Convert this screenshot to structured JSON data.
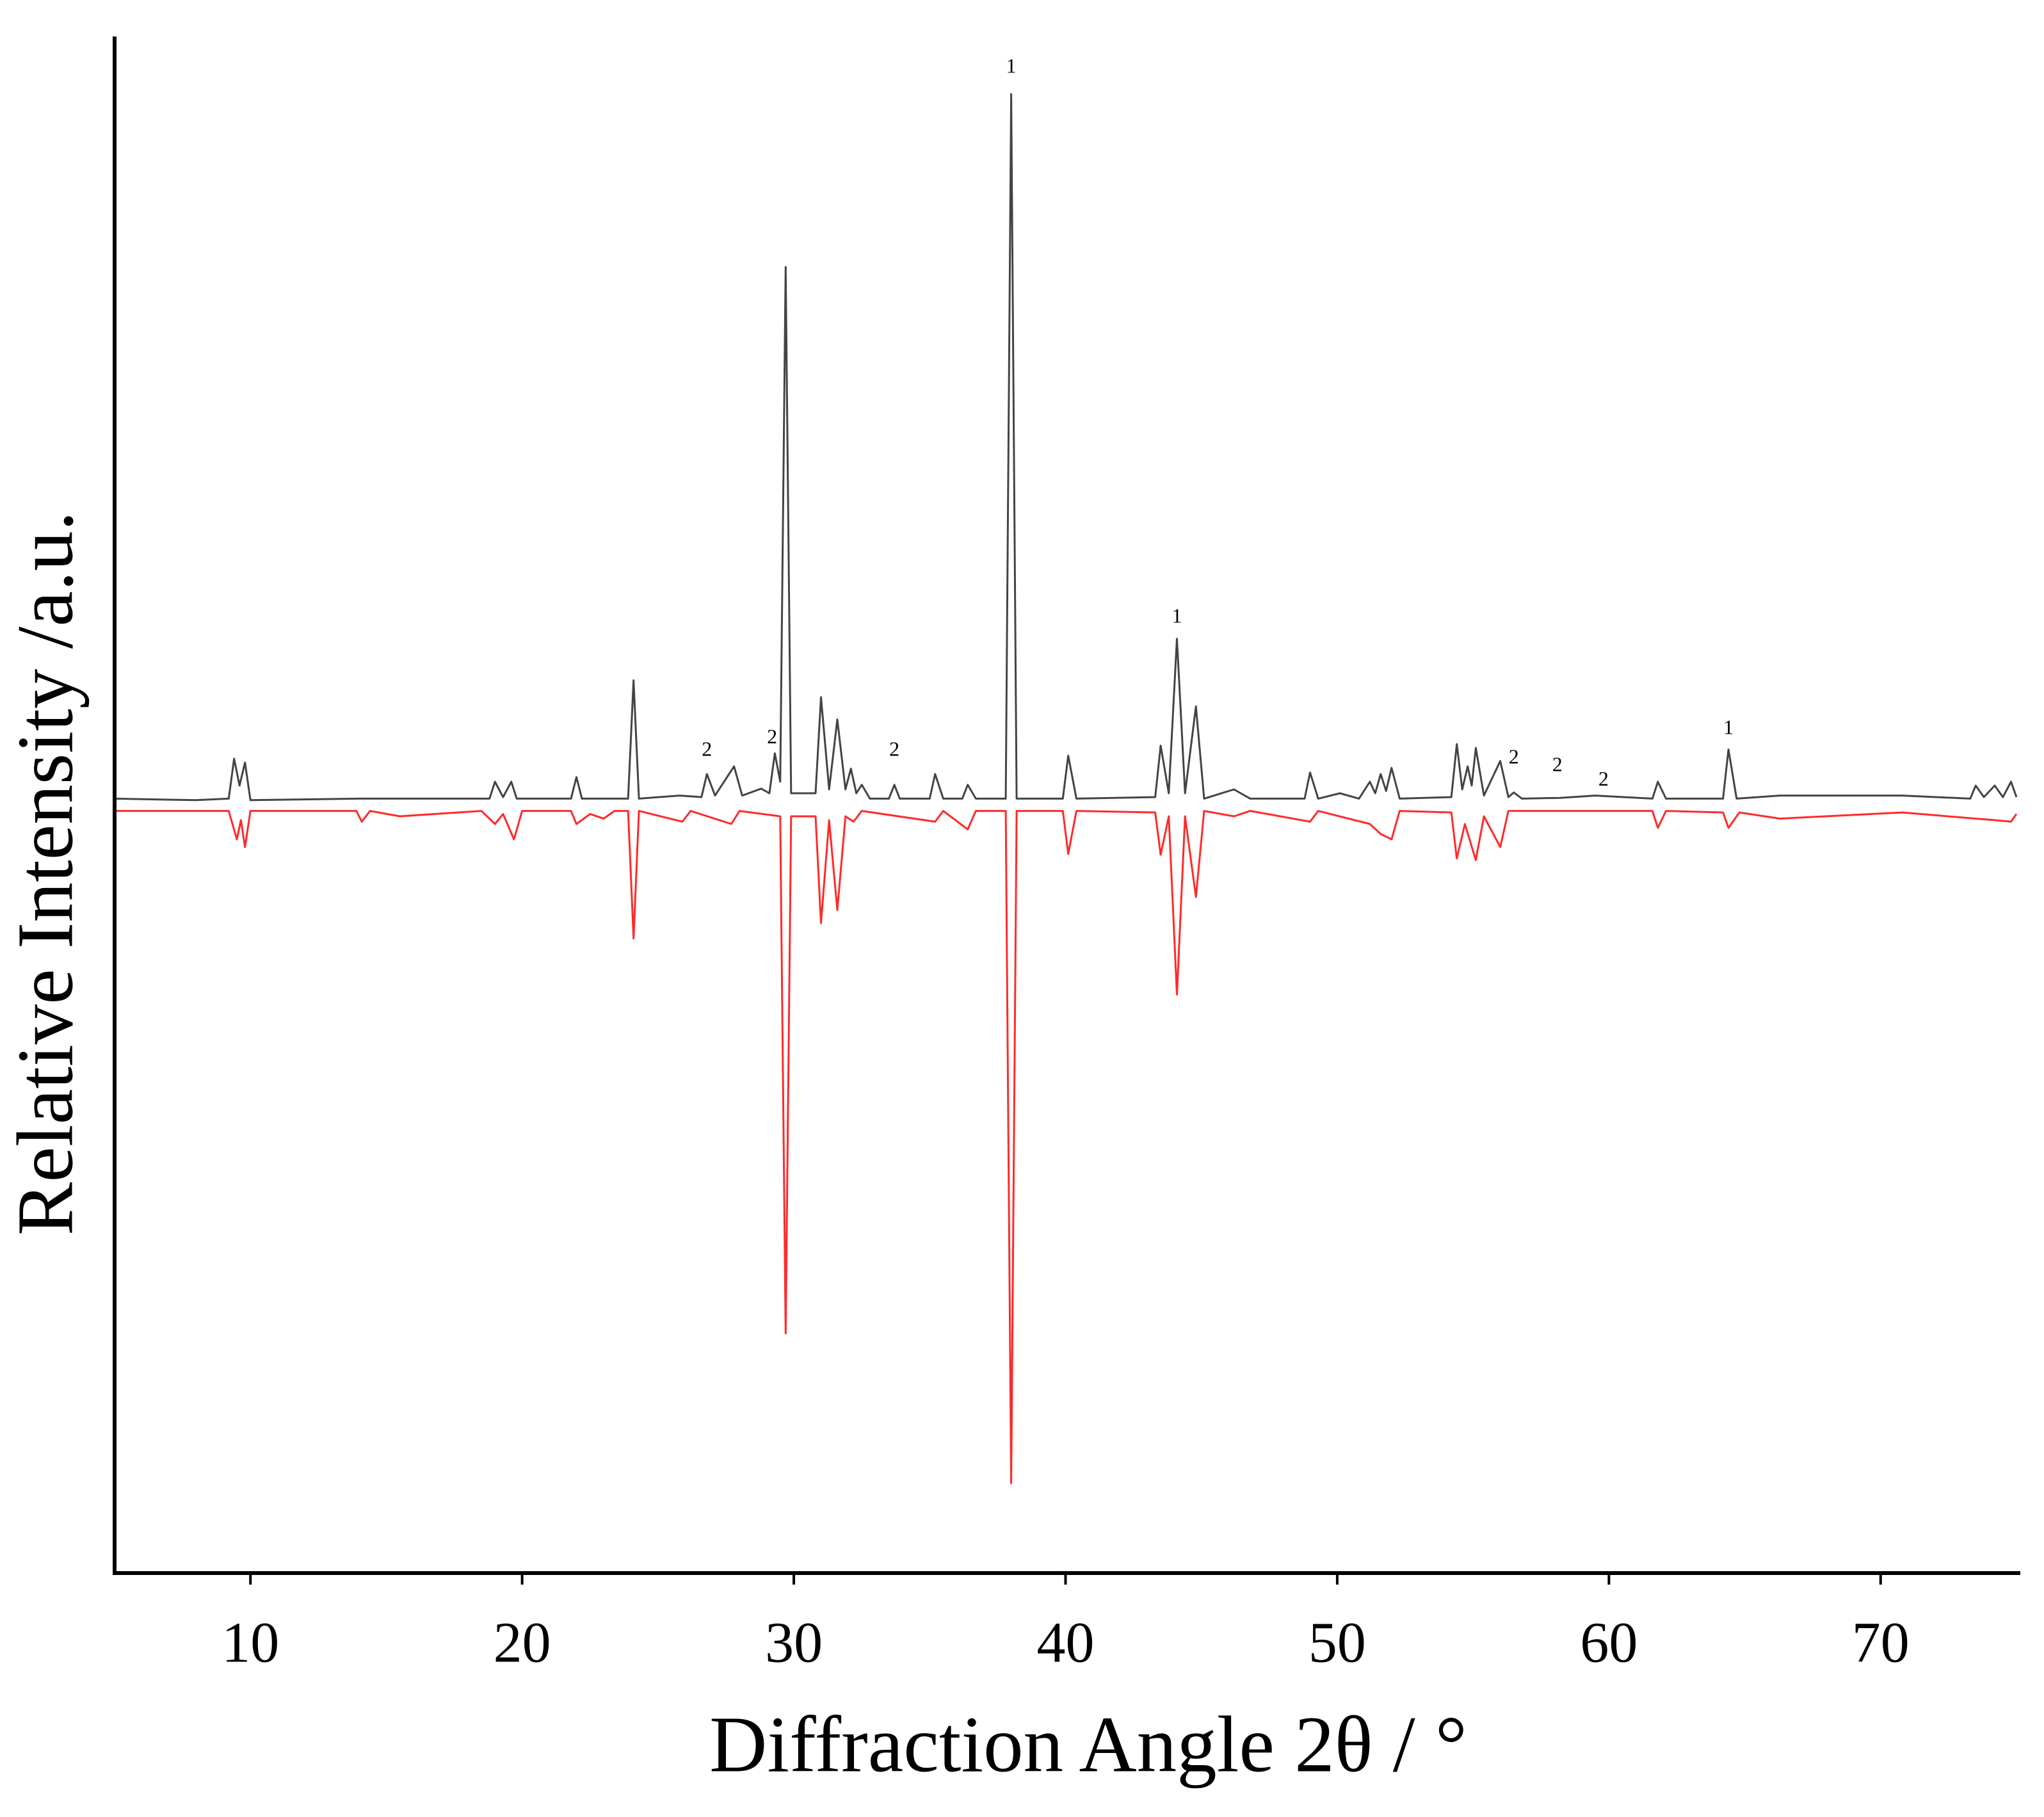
{
  "chart_data": {
    "type": "line",
    "x_label": "Diffraction Angle 2θ / °",
    "y_label": "Relative Intensity /a.u.",
    "xlim": [
      5,
      75
    ],
    "ylim": [
      -100,
      100
    ],
    "xticks": [
      10,
      20,
      30,
      40,
      50,
      60,
      70
    ],
    "series": [
      {
        "color": "#444444",
        "x": [
          5,
          8,
          9.2,
          9.4,
          9.6,
          9.8,
          10.0,
          14,
          18.8,
          19.0,
          19.3,
          19.6,
          19.8,
          21.8,
          22.0,
          22.2,
          23.9,
          24.1,
          24.3,
          25.8,
          26.6,
          26.8,
          27.1,
          27.8,
          28.1,
          28.8,
          29.1,
          29.3,
          29.5,
          29.7,
          29.9,
          30.8,
          31.0,
          31.3,
          31.6,
          31.9,
          32.1,
          32.3,
          32.5,
          32.8,
          33.5,
          33.7,
          33.9,
          35.0,
          35.2,
          35.5,
          36.2,
          36.4,
          36.7,
          37.8,
          38.0,
          38.2,
          39.9,
          40.1,
          40.4,
          43.3,
          43.5,
          43.8,
          44.1,
          44.4,
          44.8,
          45.1,
          46.2,
          46.8,
          48.8,
          49.0,
          49.3,
          50.1,
          50.8,
          51.2,
          51.4,
          51.6,
          51.8,
          52.0,
          52.3,
          54.2,
          54.4,
          54.6,
          54.8,
          54.95,
          55.1,
          55.4,
          56.0,
          56.3,
          56.5,
          56.8,
          58.2,
          59.5,
          61.6,
          61.8,
          62.1,
          64.2,
          64.4,
          64.7,
          66.3,
          70.8,
          73.3,
          73.5,
          73.8,
          74.2,
          74.5,
          74.8,
          75
        ],
        "values": [
          0.8,
          0.6,
          0.8,
          6.0,
          2.5,
          5.5,
          0.6,
          0.8,
          0.8,
          3.0,
          1.0,
          3.0,
          0.8,
          0.8,
          3.6,
          0.8,
          0.8,
          16.2,
          0.8,
          1.2,
          1.0,
          4.0,
          1.2,
          5.0,
          1.2,
          2.1,
          1.5,
          6.7,
          3.0,
          70.0,
          1.5,
          1.5,
          14.0,
          2.0,
          11.1,
          2.0,
          4.7,
          1.5,
          2.6,
          0.8,
          0.8,
          2.6,
          0.8,
          0.8,
          4.0,
          0.8,
          0.8,
          2.6,
          0.8,
          0.8,
          92.5,
          0.8,
          0.8,
          6.4,
          0.8,
          1.0,
          7.7,
          1.5,
          21.6,
          1.5,
          12.8,
          0.8,
          2.0,
          0.8,
          0.8,
          4.2,
          0.8,
          1.5,
          0.8,
          3.0,
          1.5,
          4.0,
          1.8,
          4.8,
          0.8,
          1.0,
          7.9,
          2.0,
          5.0,
          2.5,
          7.4,
          1.2,
          5.7,
          1.0,
          1.6,
          0.8,
          0.9,
          1.2,
          0.8,
          3.0,
          0.8,
          0.8,
          7.2,
          0.8,
          1.2,
          1.2,
          0.8,
          2.5,
          1.0,
          2.5,
          1.0,
          3.0,
          1.0
        ]
      },
      {
        "color": "#ff2a2a",
        "x": [
          5,
          9.2,
          9.5,
          9.65,
          9.8,
          10.0,
          13.9,
          14.1,
          14.4,
          15.5,
          18.5,
          19.0,
          19.3,
          19.7,
          20.0,
          21.8,
          22.0,
          22.5,
          23.0,
          23.4,
          23.9,
          24.1,
          24.3,
          25.9,
          26.2,
          27.7,
          28.0,
          29.5,
          29.7,
          29.9,
          30.8,
          31.0,
          31.3,
          31.6,
          31.9,
          32.2,
          32.5,
          35.2,
          35.5,
          36.4,
          36.7,
          37.8,
          38.0,
          38.2,
          39.9,
          40.1,
          40.4,
          43.3,
          43.5,
          43.8,
          44.1,
          44.4,
          44.8,
          45.1,
          46.2,
          46.8,
          49.0,
          49.3,
          51.2,
          51.6,
          52.0,
          52.3,
          54.2,
          54.4,
          54.7,
          55.1,
          55.4,
          56.0,
          56.3,
          61.6,
          61.8,
          62.1,
          64.2,
          64.4,
          64.8,
          66.3,
          70.8,
          73.5,
          74.2,
          74.8,
          75
        ],
        "values": [
          -0.8,
          -0.8,
          -4.5,
          -2.0,
          -5.5,
          -0.8,
          -0.8,
          -2.2,
          -0.8,
          -1.5,
          -0.8,
          -2.5,
          -1.2,
          -4.5,
          -0.8,
          -0.8,
          -2.5,
          -1.2,
          -1.8,
          -0.8,
          -0.8,
          -17.4,
          -0.8,
          -2.2,
          -0.8,
          -2.5,
          -0.8,
          -1.5,
          -68.8,
          -1.5,
          -1.5,
          -15.4,
          -2.0,
          -13.7,
          -1.5,
          -2.2,
          -0.8,
          -2.2,
          -0.8,
          -3.2,
          -0.8,
          -0.8,
          -88.3,
          -0.8,
          -0.8,
          -6.4,
          -0.8,
          -1.0,
          -6.5,
          -1.5,
          -24.7,
          -1.5,
          -12.0,
          -0.8,
          -1.5,
          -0.8,
          -2.2,
          -0.8,
          -2.5,
          -3.8,
          -4.5,
          -0.8,
          -1.0,
          -7.0,
          -2.5,
          -7.2,
          -1.5,
          -5.5,
          -0.8,
          -0.8,
          -3.0,
          -0.8,
          -1.0,
          -3.0,
          -1.0,
          -1.8,
          -1.0,
          -1.8,
          -2.0,
          -2.2,
          -1.2
        ]
      }
    ],
    "annotations": [
      {
        "text": "1",
        "x": 38.0,
        "y": 95.9
      },
      {
        "text": "1",
        "x": 44.1,
        "y": 24.3
      },
      {
        "text": "2",
        "x": 26.8,
        "y": 7.0
      },
      {
        "text": "2",
        "x": 29.2,
        "y": 8.6
      },
      {
        "text": "2",
        "x": 33.7,
        "y": 7.0
      },
      {
        "text": "2",
        "x": 56.5,
        "y": 6.0
      },
      {
        "text": "2",
        "x": 58.1,
        "y": 5.0
      },
      {
        "text": "2",
        "x": 59.8,
        "y": 3.1
      },
      {
        "text": "1",
        "x": 64.4,
        "y": 9.8
      }
    ]
  }
}
